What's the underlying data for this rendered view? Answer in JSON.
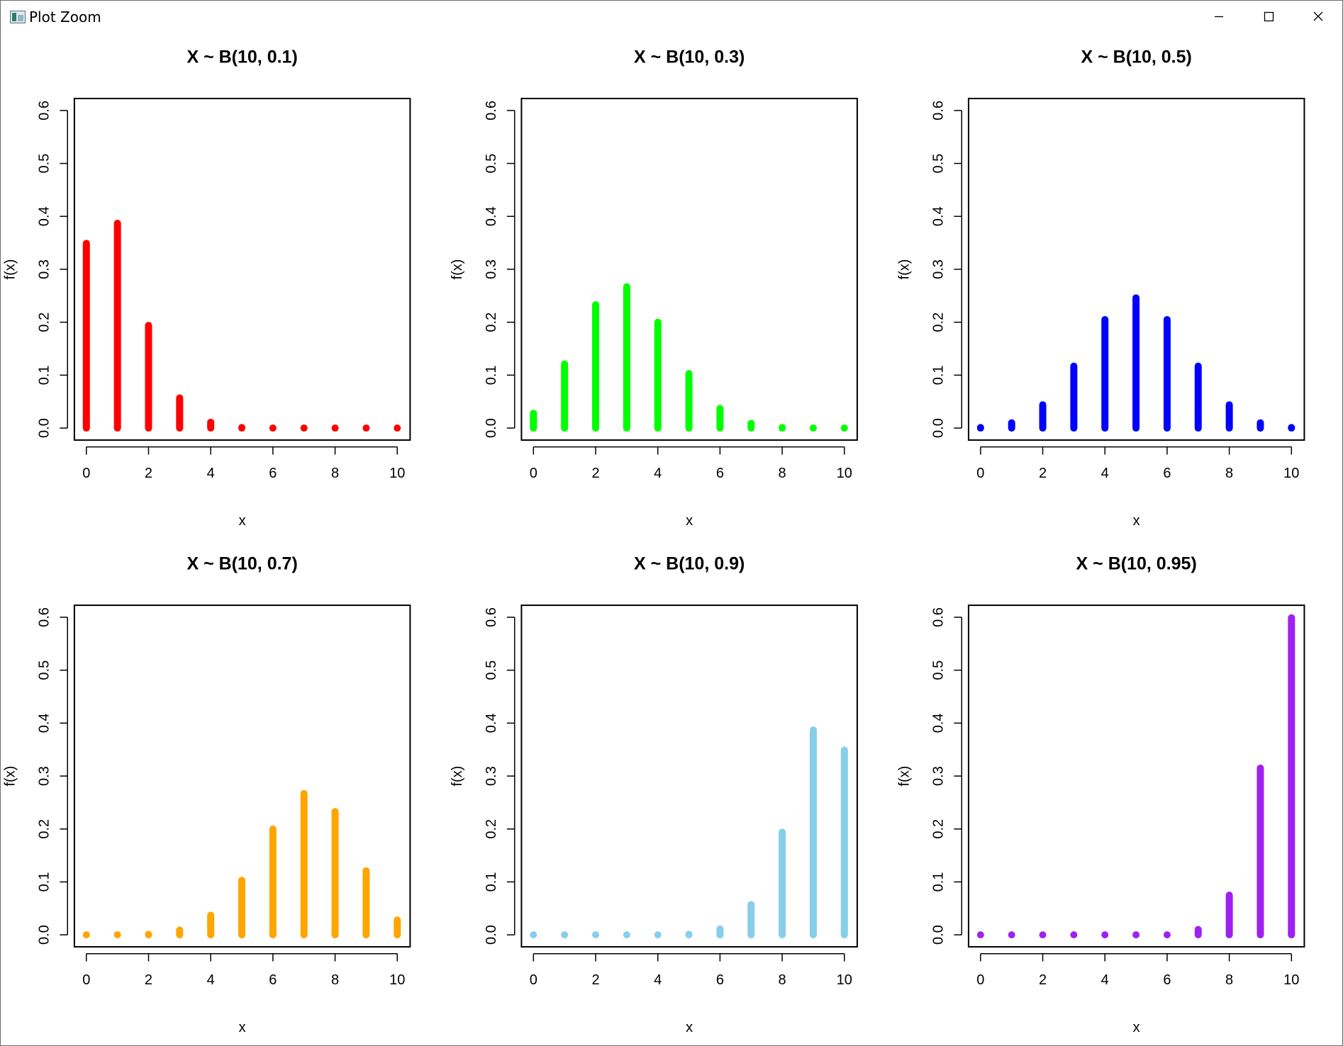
{
  "window": {
    "title": "Plot Zoom",
    "icons": {
      "app": "plot-zoom-app-icon",
      "minimize": "minimize-icon",
      "maximize": "maximize-icon",
      "close": "close-icon"
    }
  },
  "chart_data": [
    {
      "type": "bar",
      "title": "X ~ B(10, 0.1)",
      "xlabel": "x",
      "ylabel": "f(x)",
      "x": [
        0,
        1,
        2,
        3,
        4,
        5,
        6,
        7,
        8,
        9,
        10
      ],
      "values": [
        0.349,
        0.387,
        0.194,
        0.057,
        0.011,
        0.001,
        0.0,
        0.0,
        0.0,
        0.0,
        0.0
      ],
      "color": "#ff0000",
      "xlim": [
        0,
        10
      ],
      "ylim": [
        0,
        0.6
      ],
      "xticks": [
        0,
        2,
        4,
        6,
        8,
        10
      ],
      "yticks": [
        "0.0",
        "0.1",
        "0.2",
        "0.3",
        "0.4",
        "0.5",
        "0.6"
      ],
      "grid": false
    },
    {
      "type": "bar",
      "title": "X ~ B(10, 0.3)",
      "xlabel": "x",
      "ylabel": "f(x)",
      "x": [
        0,
        1,
        2,
        3,
        4,
        5,
        6,
        7,
        8,
        9,
        10
      ],
      "values": [
        0.028,
        0.121,
        0.233,
        0.267,
        0.2,
        0.103,
        0.037,
        0.009,
        0.001,
        0.0,
        0.0
      ],
      "color": "#00ff00",
      "xlim": [
        0,
        10
      ],
      "ylim": [
        0,
        0.6
      ],
      "xticks": [
        0,
        2,
        4,
        6,
        8,
        10
      ],
      "yticks": [
        "0.0",
        "0.1",
        "0.2",
        "0.3",
        "0.4",
        "0.5",
        "0.6"
      ],
      "grid": false
    },
    {
      "type": "bar",
      "title": "X ~ B(10, 0.5)",
      "xlabel": "x",
      "ylabel": "f(x)",
      "x": [
        0,
        1,
        2,
        3,
        4,
        5,
        6,
        7,
        8,
        9,
        10
      ],
      "values": [
        0.001,
        0.01,
        0.044,
        0.117,
        0.205,
        0.246,
        0.205,
        0.117,
        0.044,
        0.01,
        0.001
      ],
      "color": "#0000ff",
      "xlim": [
        0,
        10
      ],
      "ylim": [
        0,
        0.6
      ],
      "xticks": [
        0,
        2,
        4,
        6,
        8,
        10
      ],
      "yticks": [
        "0.0",
        "0.1",
        "0.2",
        "0.3",
        "0.4",
        "0.5",
        "0.6"
      ],
      "grid": false
    },
    {
      "type": "bar",
      "title": "X ~ B(10, 0.7)",
      "xlabel": "x",
      "ylabel": "f(x)",
      "x": [
        0,
        1,
        2,
        3,
        4,
        5,
        6,
        7,
        8,
        9,
        10
      ],
      "values": [
        0.0,
        0.0,
        0.001,
        0.009,
        0.037,
        0.103,
        0.2,
        0.267,
        0.233,
        0.121,
        0.028
      ],
      "color": "#ffa500",
      "xlim": [
        0,
        10
      ],
      "ylim": [
        0,
        0.6
      ],
      "xticks": [
        0,
        2,
        4,
        6,
        8,
        10
      ],
      "yticks": [
        "0.0",
        "0.1",
        "0.2",
        "0.3",
        "0.4",
        "0.5",
        "0.6"
      ],
      "grid": false
    },
    {
      "type": "bar",
      "title": "X ~ B(10, 0.9)",
      "xlabel": "x",
      "ylabel": "f(x)",
      "x": [
        0,
        1,
        2,
        3,
        4,
        5,
        6,
        7,
        8,
        9,
        10
      ],
      "values": [
        0.0,
        0.0,
        0.0,
        0.0,
        0.0,
        0.001,
        0.011,
        0.057,
        0.194,
        0.387,
        0.349
      ],
      "color": "#87ceeb",
      "xlim": [
        0,
        10
      ],
      "ylim": [
        0,
        0.6
      ],
      "xticks": [
        0,
        2,
        4,
        6,
        8,
        10
      ],
      "yticks": [
        "0.0",
        "0.1",
        "0.2",
        "0.3",
        "0.4",
        "0.5",
        "0.6"
      ],
      "grid": false
    },
    {
      "type": "bar",
      "title": "X ~ B(10, 0.95)",
      "xlabel": "x",
      "ylabel": "f(x)",
      "x": [
        0,
        1,
        2,
        3,
        4,
        5,
        6,
        7,
        8,
        9,
        10
      ],
      "values": [
        0.0,
        0.0,
        0.0,
        0.0,
        0.0,
        0.0,
        0.0,
        0.01,
        0.075,
        0.315,
        0.599
      ],
      "color": "#a020f0",
      "xlim": [
        0,
        10
      ],
      "ylim": [
        0,
        0.6
      ],
      "xticks": [
        0,
        2,
        4,
        6,
        8,
        10
      ],
      "yticks": [
        "0.0",
        "0.1",
        "0.2",
        "0.3",
        "0.4",
        "0.5",
        "0.6"
      ],
      "grid": false
    }
  ]
}
